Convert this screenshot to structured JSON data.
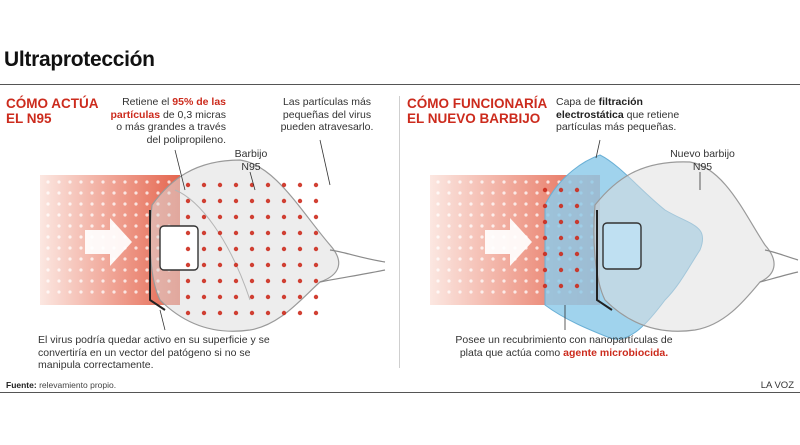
{
  "title": "Ultraprotección",
  "left": {
    "heading": [
      "CÓMO ACTÚA",
      "EL N95"
    ],
    "callout_top": {
      "pre": "Retiene el ",
      "bold": "95% de las partículas",
      "post": " de 0,3 micras o más grandes a través del polipropileno."
    },
    "callout_small": "Las partículas más pequeñas del virus pueden atravesarlo.",
    "mask_label": "Barbijo N95",
    "callout_bottom": "El virus podría quedar activo en su superficie y se convertiría en un vector del patógeno si no se manipula correctamente."
  },
  "right": {
    "heading": [
      "CÓMO FUNCIONARÍA",
      "EL NUEVO BARBIJO"
    ],
    "callout_top": {
      "pre": "Capa de ",
      "bold": "filtración electrostática",
      "post": " que retiene partículas más pequeñas."
    },
    "mask_label": "Nuevo barbijo N95",
    "callout_bottom": {
      "pre": "Posee un recubrimiento con nanopartículas de plata que actúa como ",
      "bold": "agente microbiocida."
    }
  },
  "footer": {
    "source_label": "Fuente:",
    "source_text": " relevamiento propio.",
    "credit": "LA VOZ"
  },
  "colors": {
    "accent": "#cc2b1d",
    "filter": "#8fcbea",
    "mask": "#dcdcdc"
  }
}
